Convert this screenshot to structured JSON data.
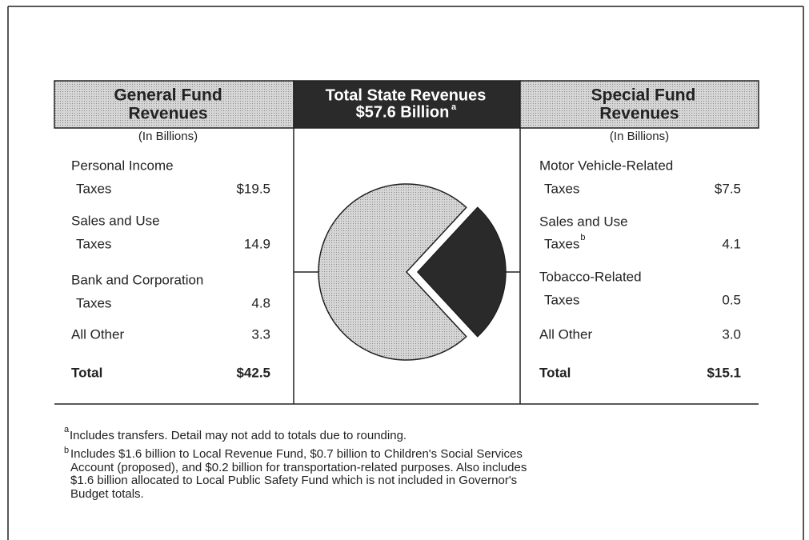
{
  "general_fund": {
    "title": [
      "General Fund",
      "Revenues"
    ],
    "units": "(In Billions)",
    "items": [
      {
        "label": [
          "Personal Income",
          "Taxes"
        ],
        "amount": "$19.5"
      },
      {
        "label": [
          "Sales and Use",
          "Taxes"
        ],
        "amount": "14.9"
      },
      {
        "label": [
          "Bank and Corporation",
          "Taxes"
        ],
        "amount": "4.8"
      },
      {
        "label": [
          "All Other"
        ],
        "amount": "3.3"
      }
    ],
    "total_label": "Total",
    "total": {
      "value": 42.5,
      "label": "$42.5"
    }
  },
  "total": {
    "title": [
      "Total State Revenues",
      "$57.6 Billion"
    ],
    "note_mark": "a"
  },
  "special_fund": {
    "title": [
      "Special Fund",
      "Revenues"
    ],
    "units": "(In Billions)",
    "items": [
      {
        "label": [
          "Motor Vehicle-Related",
          "Taxes"
        ],
        "amount": "$7.5"
      },
      {
        "label": [
          "Sales and Use",
          "Taxes"
        ],
        "note_mark": "b",
        "amount": "4.1"
      },
      {
        "label": [
          "Tobacco-Related",
          "Taxes"
        ],
        "amount": "0.5"
      },
      {
        "label": [
          "All Other"
        ],
        "amount": "3.0"
      }
    ],
    "total_label": "Total",
    "total": {
      "value": 15.1,
      "label": "$15.1"
    }
  },
  "footnotes": [
    {
      "mark": "a",
      "lines": [
        "Includes transfers. Detail may not add to totals due to rounding."
      ]
    },
    {
      "mark": "b",
      "lines": [
        "Includes $1.6 billion to Local Revenue Fund, $0.7 billion to Children's Social Services",
        "Account (proposed), and $0.2 billion for transportation-related purposes. Also includes",
        "$1.6 billion allocated to Local Public Safety Fund which is not included in Governor's",
        "Budget totals."
      ]
    }
  ]
}
